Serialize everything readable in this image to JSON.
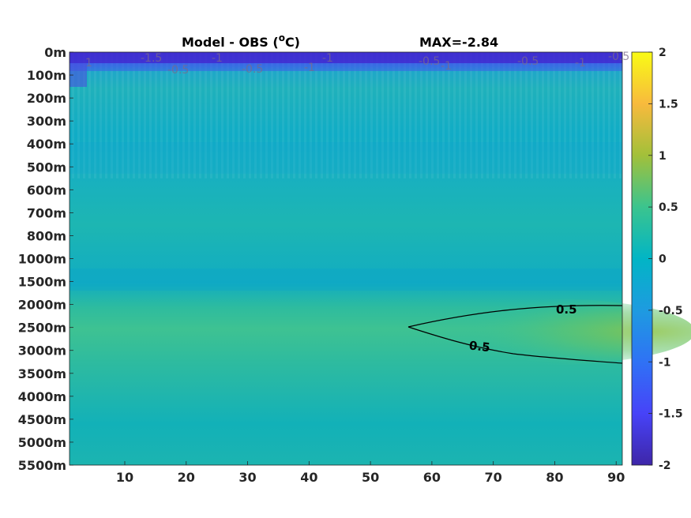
{
  "chart_data": {
    "type": "heatmap",
    "title": "Model - OBS (",
    "title_unit": "C)",
    "title_degree": "o",
    "max_label": "MAX=-2.84",
    "x_ticks": [
      10,
      20,
      30,
      40,
      50,
      60,
      70,
      80,
      90
    ],
    "xlim": [
      1,
      91
    ],
    "y_tick_labels": [
      "0m",
      "100m",
      "200m",
      "300m",
      "400m",
      "500m",
      "600m",
      "700m",
      "800m",
      "1000m",
      "1500m",
      "2000m",
      "2500m",
      "3000m",
      "3500m",
      "4000m",
      "4500m",
      "5000m",
      "5500m"
    ],
    "colorbar": {
      "range": [
        -2,
        2
      ],
      "ticks": [
        2,
        1.5,
        1,
        0.5,
        0,
        -0.5,
        -1,
        -1.5,
        -2
      ],
      "colormap": "parula"
    },
    "contours": [
      {
        "level_label": "0.5",
        "x_min": 56,
        "x_max": 91,
        "depth_center": "2500m"
      }
    ],
    "surface_contour_labels": [
      "1",
      "-1.5",
      "-0.5",
      "-1",
      "-0.5",
      "-1",
      "-1",
      "-0.5",
      "-1",
      "-0.5",
      "-1",
      "-0.5"
    ]
  }
}
